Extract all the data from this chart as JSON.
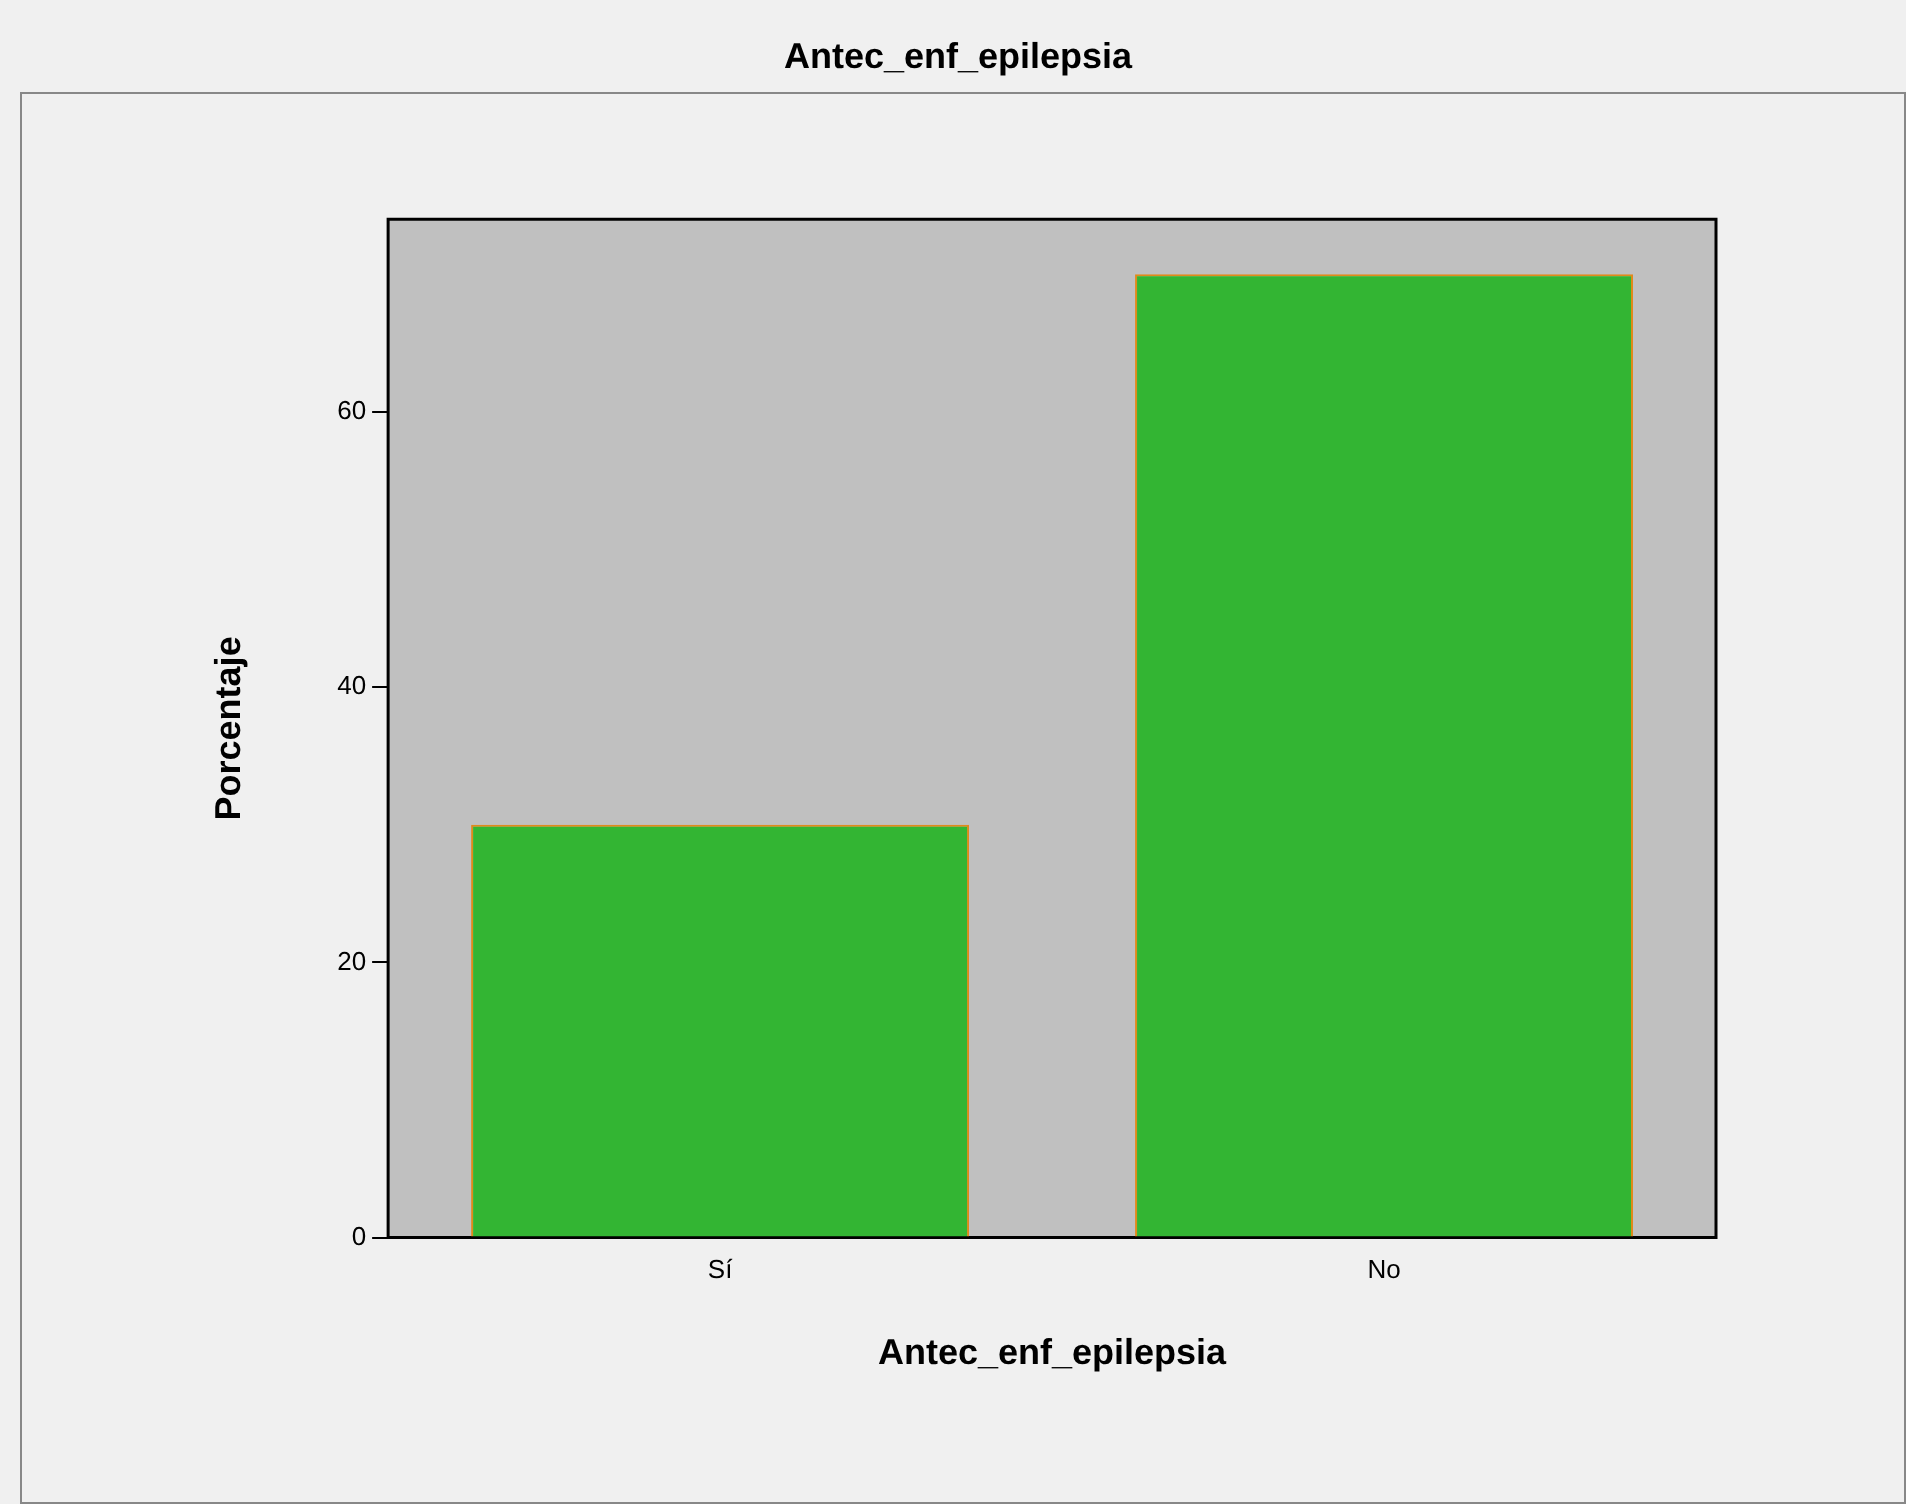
{
  "chart_data": {
    "type": "bar",
    "title": "Antec_enf_epilepsia",
    "xlabel": "Antec_enf_epilepsia",
    "ylabel": "Porcentaje",
    "categories": [
      "Sí",
      "No"
    ],
    "values": [
      30,
      70
    ],
    "color": "#33b533",
    "ylim": [
      0,
      74
    ],
    "yticks": [
      0,
      20,
      40,
      60
    ],
    "grid": false,
    "legend": false
  }
}
